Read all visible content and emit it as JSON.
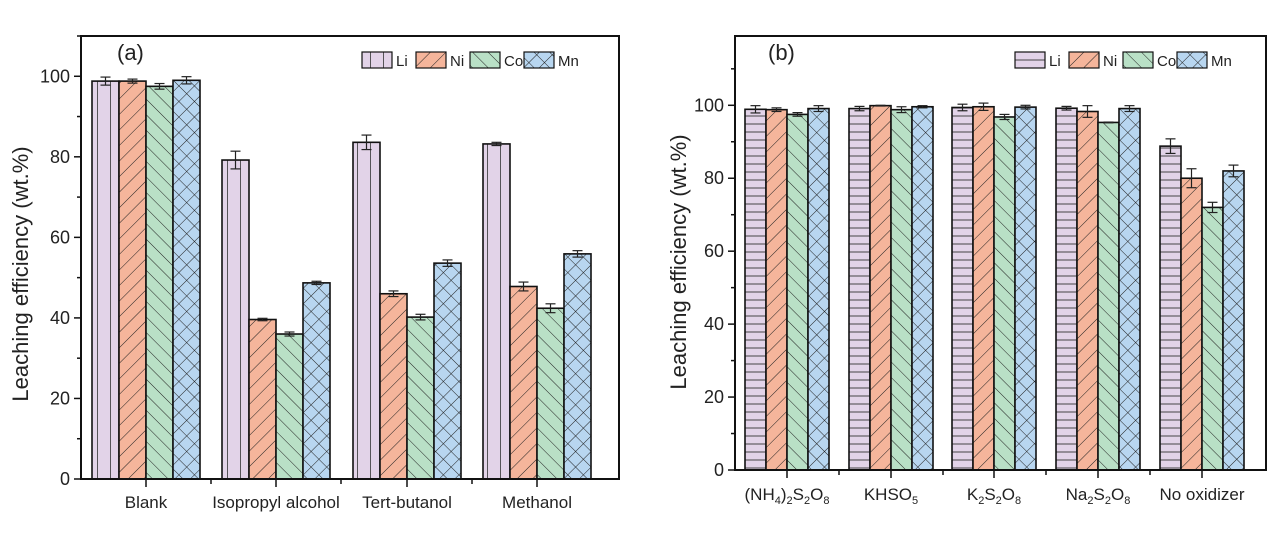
{
  "chart_data": [
    {
      "type": "bar",
      "panel_label": "(a)",
      "ylabel": "Leaching efficiency (wt.%)",
      "xlabel": "",
      "ylim": [
        0,
        110
      ],
      "yticks": [
        0,
        20,
        40,
        60,
        80,
        100
      ],
      "yminor_step": 10,
      "legend_position": "top-right",
      "categories": [
        "Blank",
        "Isopropyl alcohol",
        "Tert-butanol",
        "Methanol"
      ],
      "series": [
        {
          "name": "Li",
          "color": "#e2d3e8",
          "pattern": "vertical",
          "values": [
            98.8,
            79.2,
            83.6,
            83.2
          ],
          "errors": [
            1.0,
            2.2,
            1.8,
            0.4
          ]
        },
        {
          "name": "Ni",
          "color": "#f5b59b",
          "pattern": "forward-diagonal",
          "values": [
            98.8,
            39.6,
            46.0,
            47.8
          ],
          "errors": [
            0.5,
            0.3,
            0.7,
            1.1
          ]
        },
        {
          "name": "Co",
          "color": "#b9e0c6",
          "pattern": "back-diagonal",
          "values": [
            97.5,
            36.0,
            40.2,
            42.4
          ],
          "errors": [
            0.7,
            0.5,
            0.7,
            1.1
          ]
        },
        {
          "name": "Mn",
          "color": "#b8d6f0",
          "pattern": "crosshatch",
          "values": [
            99.0,
            48.7,
            53.6,
            55.9
          ],
          "errors": [
            0.9,
            0.4,
            0.8,
            0.8
          ]
        }
      ]
    },
    {
      "type": "bar",
      "panel_label": "(b)",
      "ylabel": "Leaching efficiency (wt.%)",
      "xlabel": "",
      "ylim": [
        0,
        119
      ],
      "yticks": [
        0,
        20,
        40,
        60,
        80,
        100
      ],
      "yminor_step": 10,
      "legend_position": "top-right",
      "categories": [
        {
          "parts": [
            [
              "(NH",
              ""
            ],
            [
              "4",
              "sub"
            ],
            [
              ")",
              ""
            ],
            [
              "2",
              "sub"
            ],
            [
              "S",
              ""
            ],
            [
              "2",
              "sub"
            ],
            [
              "O",
              ""
            ],
            [
              "8",
              "sub"
            ]
          ],
          "text": "(NH4)2S2O8"
        },
        {
          "parts": [
            [
              "KHSO",
              ""
            ],
            [
              "5",
              "sub"
            ]
          ],
          "text": "KHSO5"
        },
        {
          "parts": [
            [
              "K",
              ""
            ],
            [
              "2",
              "sub"
            ],
            [
              "S",
              ""
            ],
            [
              "2",
              "sub"
            ],
            [
              "O",
              ""
            ],
            [
              "8",
              "sub"
            ]
          ],
          "text": "K2S2O8"
        },
        {
          "parts": [
            [
              "Na",
              ""
            ],
            [
              "2",
              "sub"
            ],
            [
              "S",
              ""
            ],
            [
              "2",
              "sub"
            ],
            [
              "O",
              ""
            ],
            [
              "8",
              "sub"
            ]
          ],
          "text": "Na2S2O8"
        },
        {
          "parts": [
            [
              "No oxidizer",
              ""
            ]
          ],
          "text": "No oxidizer"
        }
      ],
      "series": [
        {
          "name": "Li",
          "color": "#e2d3e8",
          "pattern": "horizontal",
          "values": [
            98.9,
            99.1,
            99.4,
            99.2
          ],
          "errors": [
            1.0,
            0.6,
            0.9,
            0.5
          ]
        },
        {
          "name": "Ni",
          "color": "#f5b59b",
          "pattern": "forward-diagonal",
          "values": [
            98.8,
            99.9,
            99.6,
            98.3
          ],
          "errors": [
            0.5,
            0.1,
            1.0,
            1.6
          ]
        },
        {
          "name": "Co",
          "color": "#b9e0c6",
          "pattern": "back-diagonal",
          "values": [
            97.5,
            98.8,
            96.8,
            95.3
          ],
          "errors": [
            0.5,
            0.8,
            0.7,
            0.1
          ]
        },
        {
          "name": "Mn",
          "color": "#b8d6f0",
          "pattern": "crosshatch",
          "values": [
            99.1,
            99.6,
            99.5,
            99.1
          ],
          "errors": [
            0.8,
            0.3,
            0.5,
            0.8
          ]
        }
      ],
      "no_oxidizer": {
        "Li": [
          88.8,
          2.0
        ],
        "Ni": [
          80.0,
          2.6
        ],
        "Co": [
          72.0,
          1.4
        ],
        "Mn": [
          82.0,
          1.6
        ]
      }
    }
  ]
}
